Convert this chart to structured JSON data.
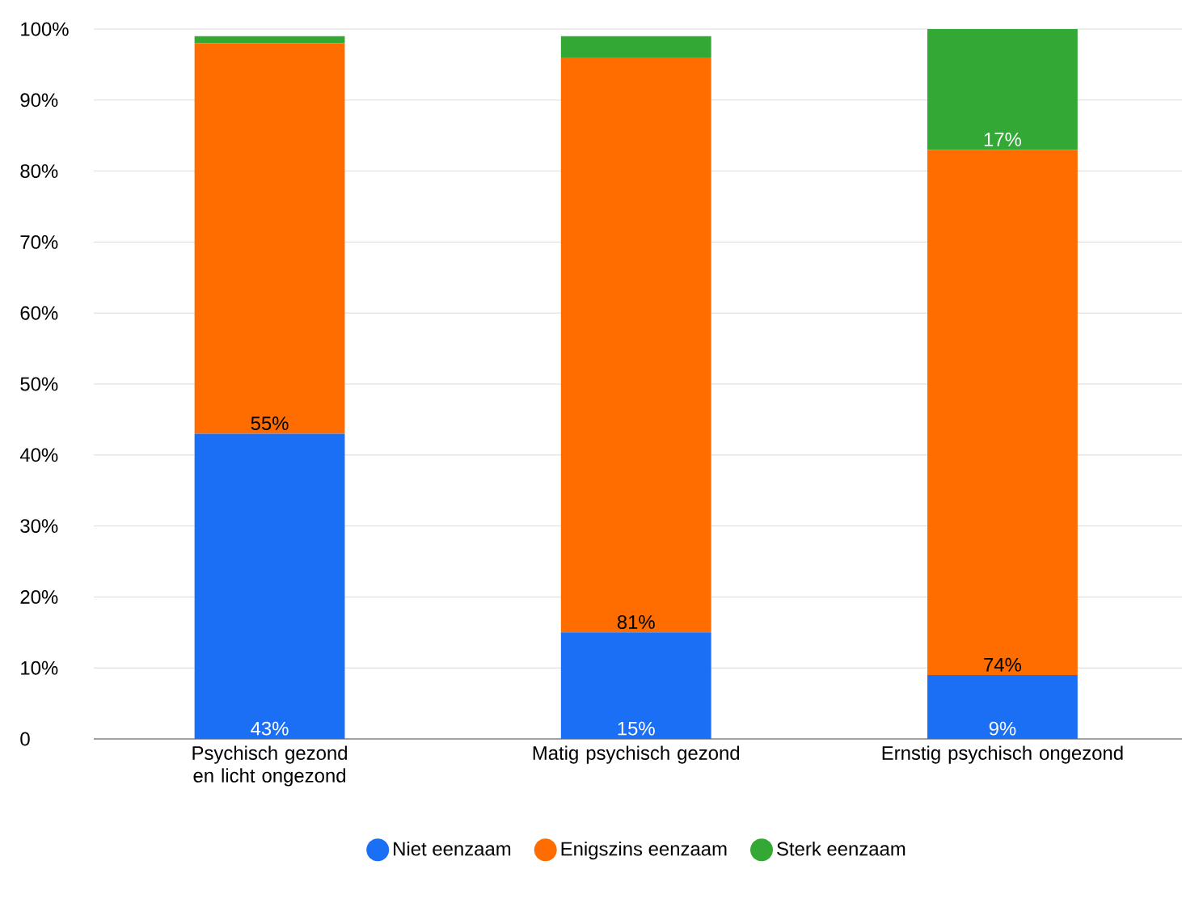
{
  "chart_data": {
    "type": "bar",
    "stacked": true,
    "categories": [
      "Psychisch gezond en licht ongezond",
      "Matig psychisch gezond",
      "Ernstig psychisch ongezond"
    ],
    "series": [
      {
        "name": "Niet eenzaam",
        "color": "#1a6ff5",
        "values": [
          43,
          15,
          9
        ],
        "value_labels": [
          "43%",
          "15%",
          "9%"
        ]
      },
      {
        "name": "Enigszins eenzaam",
        "color": "#ff6d01",
        "values": [
          55,
          81,
          74
        ],
        "value_labels": [
          "55%",
          "81%",
          "74%"
        ]
      },
      {
        "name": "Sterk eenzaam",
        "color": "#34a835",
        "values": [
          1,
          3,
          17
        ],
        "value_labels": [
          null,
          null,
          "17%"
        ]
      }
    ],
    "ylim": [
      0,
      100
    ],
    "yticks": [
      0,
      {
        "value": 10,
        "label": "10%"
      },
      {
        "value": 20,
        "label": "20%"
      },
      {
        "value": 30,
        "label": "30%"
      },
      {
        "value": 40,
        "label": "40%"
      },
      {
        "value": 50,
        "label": "50%"
      },
      {
        "value": 60,
        "label": "60%"
      },
      {
        "value": 70,
        "label": "70%"
      },
      {
        "value": 80,
        "label": "80%"
      },
      {
        "value": 90,
        "label": "90%"
      },
      {
        "value": 100,
        "label": "100%"
      }
    ],
    "grid": "y",
    "legend": "bottom"
  }
}
